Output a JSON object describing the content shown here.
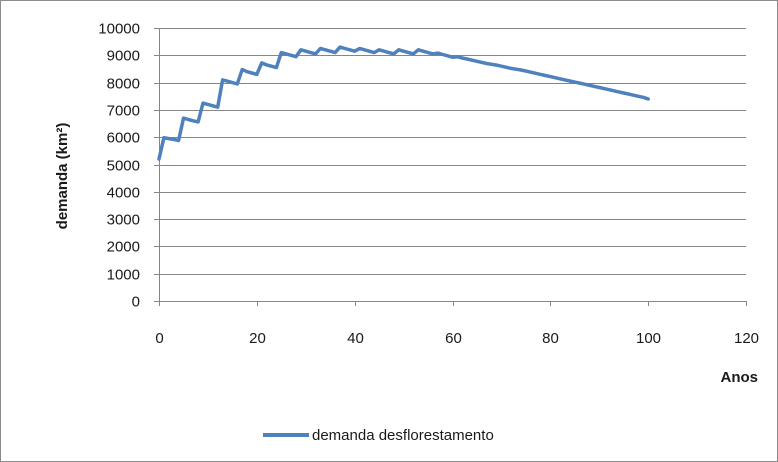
{
  "chart_data": {
    "type": "line",
    "title": "",
    "xlabel": "Anos",
    "ylabel": "demanda (km²)",
    "xlim": [
      0,
      120
    ],
    "ylim": [
      0,
      10000
    ],
    "x_ticks": [
      0,
      20,
      40,
      60,
      80,
      100,
      120
    ],
    "y_ticks": [
      0,
      1000,
      2000,
      3000,
      4000,
      5000,
      6000,
      7000,
      8000,
      9000,
      10000
    ],
    "grid": "horizontal",
    "legend_position": "bottom",
    "series": [
      {
        "name": "demanda desflorestamento",
        "color": "#4f81bd",
        "x": [
          0,
          1,
          2,
          3,
          4,
          5,
          6,
          7,
          8,
          9,
          10,
          11,
          12,
          13,
          14,
          15,
          16,
          17,
          18,
          19,
          20,
          21,
          22,
          23,
          24,
          25,
          26,
          27,
          28,
          29,
          30,
          31,
          32,
          33,
          34,
          35,
          36,
          37,
          38,
          39,
          40,
          41,
          42,
          43,
          44,
          45,
          46,
          47,
          48,
          49,
          50,
          51,
          52,
          53,
          54,
          55,
          56,
          57,
          58,
          59,
          60,
          61,
          62,
          63,
          64,
          65,
          66,
          67,
          68,
          69,
          70,
          71,
          72,
          73,
          74,
          75,
          76,
          77,
          78,
          79,
          80,
          81,
          82,
          83,
          84,
          85,
          86,
          87,
          88,
          89,
          90,
          91,
          92,
          93,
          94,
          95,
          96,
          97,
          98,
          99,
          100
        ],
        "y": [
          5200,
          5980,
          5950,
          5920,
          5880,
          6700,
          6650,
          6600,
          6560,
          7250,
          7200,
          7150,
          7100,
          8100,
          8050,
          8000,
          7950,
          8480,
          8400,
          8350,
          8300,
          8720,
          8650,
          8600,
          8550,
          9100,
          9050,
          9000,
          8950,
          9200,
          9150,
          9100,
          9050,
          9250,
          9200,
          9150,
          9100,
          9300,
          9250,
          9200,
          9150,
          9250,
          9200,
          9150,
          9100,
          9200,
          9150,
          9100,
          9050,
          9200,
          9150,
          9100,
          9050,
          9200,
          9150,
          9100,
          9050,
          9080,
          9030,
          8980,
          8930,
          8950,
          8900,
          8860,
          8820,
          8780,
          8740,
          8700,
          8670,
          8640,
          8600,
          8560,
          8520,
          8490,
          8460,
          8420,
          8380,
          8340,
          8300,
          8260,
          8220,
          8180,
          8140,
          8100,
          8060,
          8020,
          7980,
          7940,
          7900,
          7860,
          7820,
          7780,
          7740,
          7700,
          7660,
          7620,
          7580,
          7540,
          7500,
          7460,
          7400
        ]
      }
    ]
  }
}
